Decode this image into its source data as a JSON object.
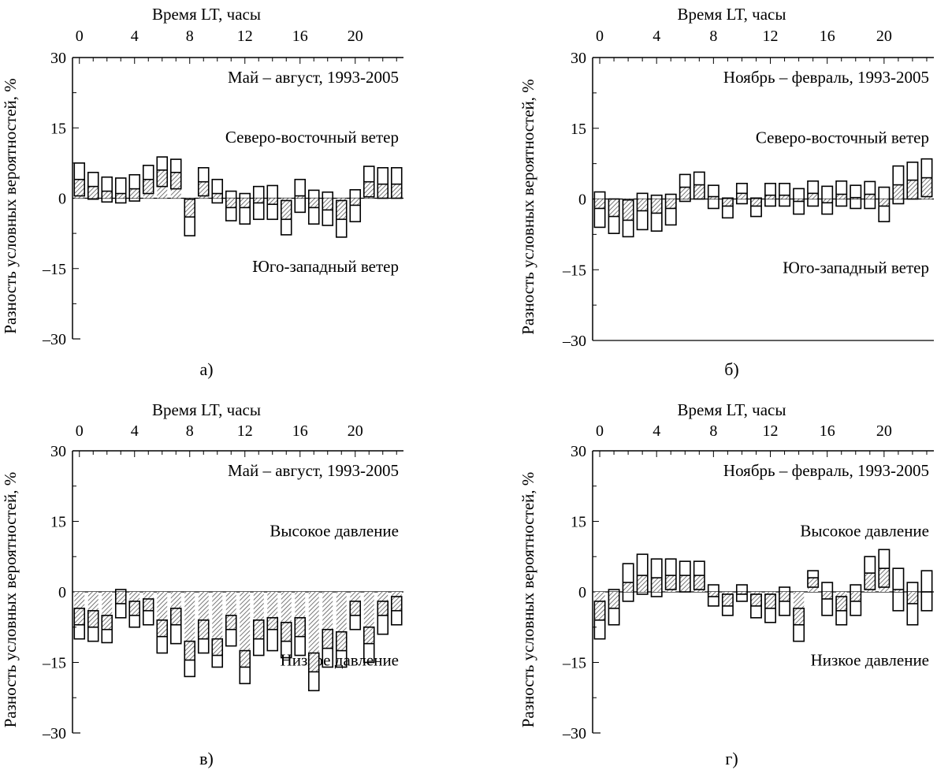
{
  "chart_data": [
    {
      "type": "bar",
      "panel_label": "а)",
      "x_top_label": "Время LT, часы",
      "ylabel": "Разность условных вероятностей, %",
      "x_ticks": [
        0,
        4,
        8,
        12,
        16,
        20
      ],
      "y_ticks": [
        "30",
        "15",
        "0",
        "–15",
        "–30"
      ],
      "ylim": [
        -30,
        30
      ],
      "xlim": [
        -0.5,
        23.5
      ],
      "annotations": {
        "period": "Май – август, 1993-2005",
        "upper": "Северо-восточный ветер",
        "lower": "Юго-западный ветер"
      },
      "hours": [
        0,
        1,
        2,
        3,
        4,
        5,
        6,
        7,
        8,
        9,
        10,
        11,
        12,
        13,
        14,
        15,
        16,
        17,
        18,
        19,
        20,
        21,
        22,
        23
      ],
      "series": [
        {
          "values": [
            [
              0.5,
              4,
              7.5
            ],
            [
              -0.2,
              2.5,
              5.5
            ],
            [
              -0.8,
              1.5,
              4.5
            ],
            [
              -1,
              1,
              4.3
            ],
            [
              -0.6,
              2,
              5
            ],
            [
              1,
              4,
              7
            ],
            [
              2.5,
              6,
              8.8
            ],
            [
              2,
              5.5,
              8.3
            ],
            [
              -8,
              -4,
              -0.2
            ],
            [
              0.5,
              3.5,
              6.5
            ],
            [
              -1,
              1,
              4
            ],
            [
              -4.8,
              -2,
              1.5
            ],
            [
              -5.5,
              -2,
              1
            ],
            [
              -4.5,
              -1,
              2.5
            ],
            [
              -4.5,
              -1.3,
              2.7
            ],
            [
              -7.8,
              -4.5,
              -0.5
            ],
            [
              -3,
              0.5,
              4
            ],
            [
              -5.5,
              -2,
              1.7
            ],
            [
              -5.8,
              -2.5,
              1.3
            ],
            [
              -8.3,
              -4.5,
              -0.5
            ],
            [
              -5,
              -1.5,
              1.8
            ],
            [
              0.3,
              3.5,
              6.8
            ],
            [
              0,
              3,
              6.5
            ],
            [
              0,
              3,
              6.5
            ]
          ]
        }
      ]
    },
    {
      "type": "bar",
      "panel_label": "б)",
      "x_top_label": "Время LT, часы",
      "ylabel": "Разность условных вероятностей, %",
      "x_ticks": [
        0,
        4,
        8,
        12,
        16,
        20
      ],
      "y_ticks": [
        "30",
        "15",
        "0",
        "–15",
        "–30"
      ],
      "ylim": [
        -30,
        30
      ],
      "xlim": [
        -0.5,
        23.5
      ],
      "annotations": {
        "period": "Ноябрь – февраль, 1993-2005",
        "upper": "Северо-восточный ветер",
        "lower": "Юго-западный ветер"
      },
      "hours": [
        0,
        1,
        2,
        3,
        4,
        5,
        6,
        7,
        8,
        9,
        10,
        11,
        12,
        13,
        14,
        15,
        16,
        17,
        18,
        19,
        20,
        21,
        22,
        23
      ],
      "series": [
        {
          "values": [
            [
              -6,
              -2,
              1.5
            ],
            [
              -7.3,
              -3.7,
              0
            ],
            [
              -8,
              -4.5,
              -0.2
            ],
            [
              -6.5,
              -2.5,
              1.2
            ],
            [
              -6.8,
              -3,
              0.8
            ],
            [
              -5.5,
              -2,
              1
            ],
            [
              -0.5,
              2.5,
              5.2
            ],
            [
              0,
              3,
              5.7
            ],
            [
              -2,
              0.5,
              2.9
            ],
            [
              -4,
              -1.5,
              0.2
            ],
            [
              -1,
              1.2,
              3.3
            ],
            [
              -3.7,
              -1.5,
              0.2
            ],
            [
              -1.5,
              0.8,
              3.3
            ],
            [
              -1.5,
              0.8,
              3.3
            ],
            [
              -3.2,
              -0.5,
              2.2
            ],
            [
              -1.5,
              1.2,
              3.8
            ],
            [
              -3.2,
              -0.8,
              2.7
            ],
            [
              -1.5,
              1,
              3.8
            ],
            [
              -2,
              0.3,
              2.9
            ],
            [
              -2,
              1,
              3.7
            ],
            [
              -4.8,
              -1.5,
              2.5
            ],
            [
              -1,
              3,
              7
            ],
            [
              0,
              4,
              7.8
            ],
            [
              0.5,
              4.5,
              8.5
            ]
          ]
        }
      ]
    },
    {
      "type": "bar",
      "panel_label": "в)",
      "x_top_label": "Время LT, часы",
      "ylabel": "Разность условных вероятностей, %",
      "x_ticks": [
        0,
        4,
        8,
        12,
        16,
        20
      ],
      "y_ticks": [
        "30",
        "15",
        "0",
        "–15",
        "–30"
      ],
      "ylim": [
        -30,
        30
      ],
      "xlim": [
        -0.5,
        23.5
      ],
      "annotations": {
        "period": "Май – август, 1993-2005",
        "upper": "Высокое давление",
        "lower": "Низкое давление"
      },
      "hours": [
        0,
        1,
        2,
        3,
        4,
        5,
        6,
        7,
        8,
        9,
        10,
        11,
        12,
        13,
        14,
        15,
        16,
        17,
        18,
        19,
        20,
        21,
        22,
        23
      ],
      "series": [
        {
          "values": [
            [
              -10,
              -7,
              -3.5
            ],
            [
              -10.5,
              -7.5,
              -4
            ],
            [
              -10.8,
              -8,
              -5
            ],
            [
              -5.5,
              -2.5,
              0.5
            ],
            [
              -7.5,
              -5,
              -2
            ],
            [
              -7,
              -4,
              -1.5
            ],
            [
              -13,
              -9.5,
              -6
            ],
            [
              -11,
              -7,
              -3.5
            ],
            [
              -18,
              -14.5,
              -10.5
            ],
            [
              -13,
              -10,
              -6
            ],
            [
              -16,
              -13.5,
              -10
            ],
            [
              -11.5,
              -8,
              -5
            ],
            [
              -19.5,
              -16,
              -12.5
            ],
            [
              -13.5,
              -10,
              -6
            ],
            [
              -12.5,
              -8,
              -5.5
            ],
            [
              -14,
              -10.5,
              -6.5
            ],
            [
              -13.5,
              -9.5,
              -5.5
            ],
            [
              -21,
              -17,
              -13
            ],
            [
              -16,
              -12,
              -8
            ],
            [
              -16,
              -12.5,
              -8.5
            ],
            [
              -8,
              -5,
              -2
            ],
            [
              -15,
              -11,
              -7.5
            ],
            [
              -9,
              -5,
              -2
            ],
            [
              -7,
              -4,
              -1
            ]
          ]
        }
      ]
    },
    {
      "type": "bar",
      "panel_label": "г)",
      "x_top_label": "Время LT, часы",
      "ylabel": "Разность условных вероятностей, %",
      "x_ticks": [
        0,
        4,
        8,
        12,
        16,
        20
      ],
      "y_ticks": [
        "30",
        "15",
        "0",
        "–15",
        "–30"
      ],
      "ylim": [
        -30,
        30
      ],
      "xlim": [
        -0.5,
        23.5
      ],
      "annotations": {
        "period": "Ноябрь – февраль, 1993-2005",
        "upper": "Высокое давление",
        "lower": "Низкое давление"
      },
      "hours": [
        0,
        1,
        2,
        3,
        4,
        5,
        6,
        7,
        8,
        9,
        10,
        11,
        12,
        13,
        14,
        15,
        16,
        17,
        18,
        19,
        20,
        21,
        22,
        23
      ],
      "series": [
        {
          "values": [
            [
              -10,
              -6,
              -2
            ],
            [
              -7,
              -3.5,
              0.5
            ],
            [
              -2,
              2,
              6
            ],
            [
              -0.5,
              3.5,
              8
            ],
            [
              -1,
              3,
              7
            ],
            [
              0.5,
              3.5,
              7
            ],
            [
              0,
              3.5,
              6.5
            ],
            [
              0.5,
              3.5,
              6.5
            ],
            [
              -3,
              -1,
              1.5
            ],
            [
              -5,
              -3,
              -0.5
            ],
            [
              -2,
              -0.5,
              1.5
            ],
            [
              -5.5,
              -3,
              -0.5
            ],
            [
              -6.5,
              -3.5,
              -0.5
            ],
            [
              -5,
              -2,
              1
            ],
            [
              -10.5,
              -7,
              -3.5
            ],
            [
              1,
              3,
              4.5
            ],
            [
              -5,
              -1.5,
              2
            ],
            [
              -7,
              -4,
              -1
            ],
            [
              -5,
              -2,
              1.5
            ],
            [
              0.5,
              4,
              7.5
            ],
            [
              1,
              5,
              9
            ],
            [
              -4,
              0.5,
              5
            ],
            [
              -7,
              -2.5,
              2
            ],
            [
              -4,
              0,
              4.5
            ]
          ]
        }
      ]
    }
  ]
}
